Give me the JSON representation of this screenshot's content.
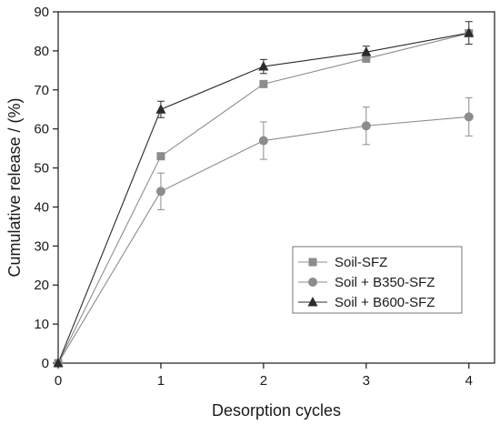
{
  "chart_data": {
    "type": "line",
    "xlabel": "Desorption cycles",
    "ylabel": "Cumulative release / (%)",
    "xlim": [
      0,
      4.25
    ],
    "ylim": [
      0,
      90
    ],
    "xticks": [
      "0",
      "1",
      "2",
      "3",
      "4"
    ],
    "yticks": [
      "0",
      "10",
      "20",
      "30",
      "40",
      "50",
      "60",
      "70",
      "80",
      "90"
    ],
    "legend_position": "lower-right",
    "grid": false,
    "x": [
      0,
      1,
      2,
      3,
      4
    ],
    "series": [
      {
        "name": "Soil-SFZ",
        "marker": "square",
        "color": "#8c8c8c",
        "values": [
          0,
          53,
          71.5,
          78,
          84.5
        ],
        "errors": [
          0,
          0,
          0,
          0,
          0
        ]
      },
      {
        "name": "Soil + B350-SFZ",
        "marker": "circle",
        "color": "#8c8c8c",
        "values": [
          0,
          44,
          57,
          60.8,
          63.1
        ],
        "errors": [
          0,
          4.7,
          4.8,
          4.8,
          4.9
        ]
      },
      {
        "name": "Soil + B600-SFZ",
        "marker": "triangle",
        "color": "#2b2b2b",
        "values": [
          0,
          65,
          76,
          79.7,
          84.6
        ],
        "errors": [
          0,
          2.1,
          1.8,
          1.5,
          2.9
        ]
      }
    ]
  }
}
